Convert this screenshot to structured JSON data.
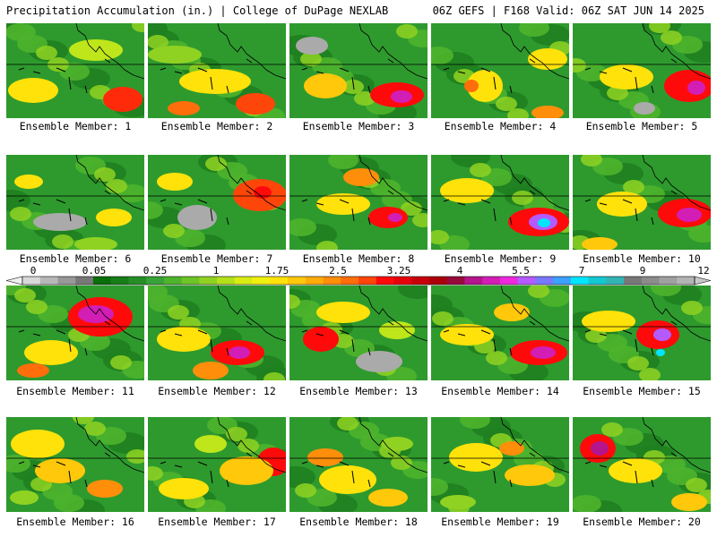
{
  "header": {
    "left": "Precipitation Accumulation (in.) | College of DuPage NEXLAB",
    "right": "06Z GEFS | F168 Valid: 06Z SAT JUN 14 2025"
  },
  "legend": {
    "tick_labels": [
      "0",
      "0.05",
      "0.25",
      "1",
      "1.75",
      "2.5",
      "3.25",
      "4",
      "5.5",
      "7",
      "9",
      "12"
    ],
    "colors": [
      "#d8d8d8",
      "#b8b8b8",
      "#989898",
      "#787878",
      "#0a6e0a",
      "#187e18",
      "#268e26",
      "#38a238",
      "#4eb42c",
      "#6cc428",
      "#90d222",
      "#b4e01a",
      "#d8ec14",
      "#f0f010",
      "#ffe20a",
      "#ffc80a",
      "#ffac0a",
      "#ff8e0a",
      "#ff6e0a",
      "#ff460a",
      "#ff0a0a",
      "#e6000a",
      "#c8000a",
      "#aa000a",
      "#960a3c",
      "#b4148c",
      "#d21eb4",
      "#ee28dc",
      "#b45aff",
      "#7878ff",
      "#3ca0ff",
      "#00e6ff",
      "#14c8d2",
      "#32b4b4",
      "#787878",
      "#8c8c8c",
      "#a0a0a0",
      "#b4b4b4"
    ]
  },
  "panels": [
    {
      "label": "Ensemble Member: 1"
    },
    {
      "label": "Ensemble Member: 2"
    },
    {
      "label": "Ensemble Member: 3"
    },
    {
      "label": "Ensemble Member: 4"
    },
    {
      "label": "Ensemble Member: 5"
    },
    {
      "label": "Ensemble Member: 6"
    },
    {
      "label": "Ensemble Member: 7"
    },
    {
      "label": "Ensemble Member: 8"
    },
    {
      "label": "Ensemble Member: 9"
    },
    {
      "label": "Ensemble Member: 10"
    },
    {
      "label": "Ensemble Member: 11"
    },
    {
      "label": "Ensemble Member: 12"
    },
    {
      "label": "Ensemble Member: 13"
    },
    {
      "label": "Ensemble Member: 14"
    },
    {
      "label": "Ensemble Member: 15"
    },
    {
      "label": "Ensemble Member: 16"
    },
    {
      "label": "Ensemble Member: 17"
    },
    {
      "label": "Ensemble Member: 18"
    },
    {
      "label": "Ensemble Member: 19"
    },
    {
      "label": "Ensemble Member: 20"
    }
  ]
}
